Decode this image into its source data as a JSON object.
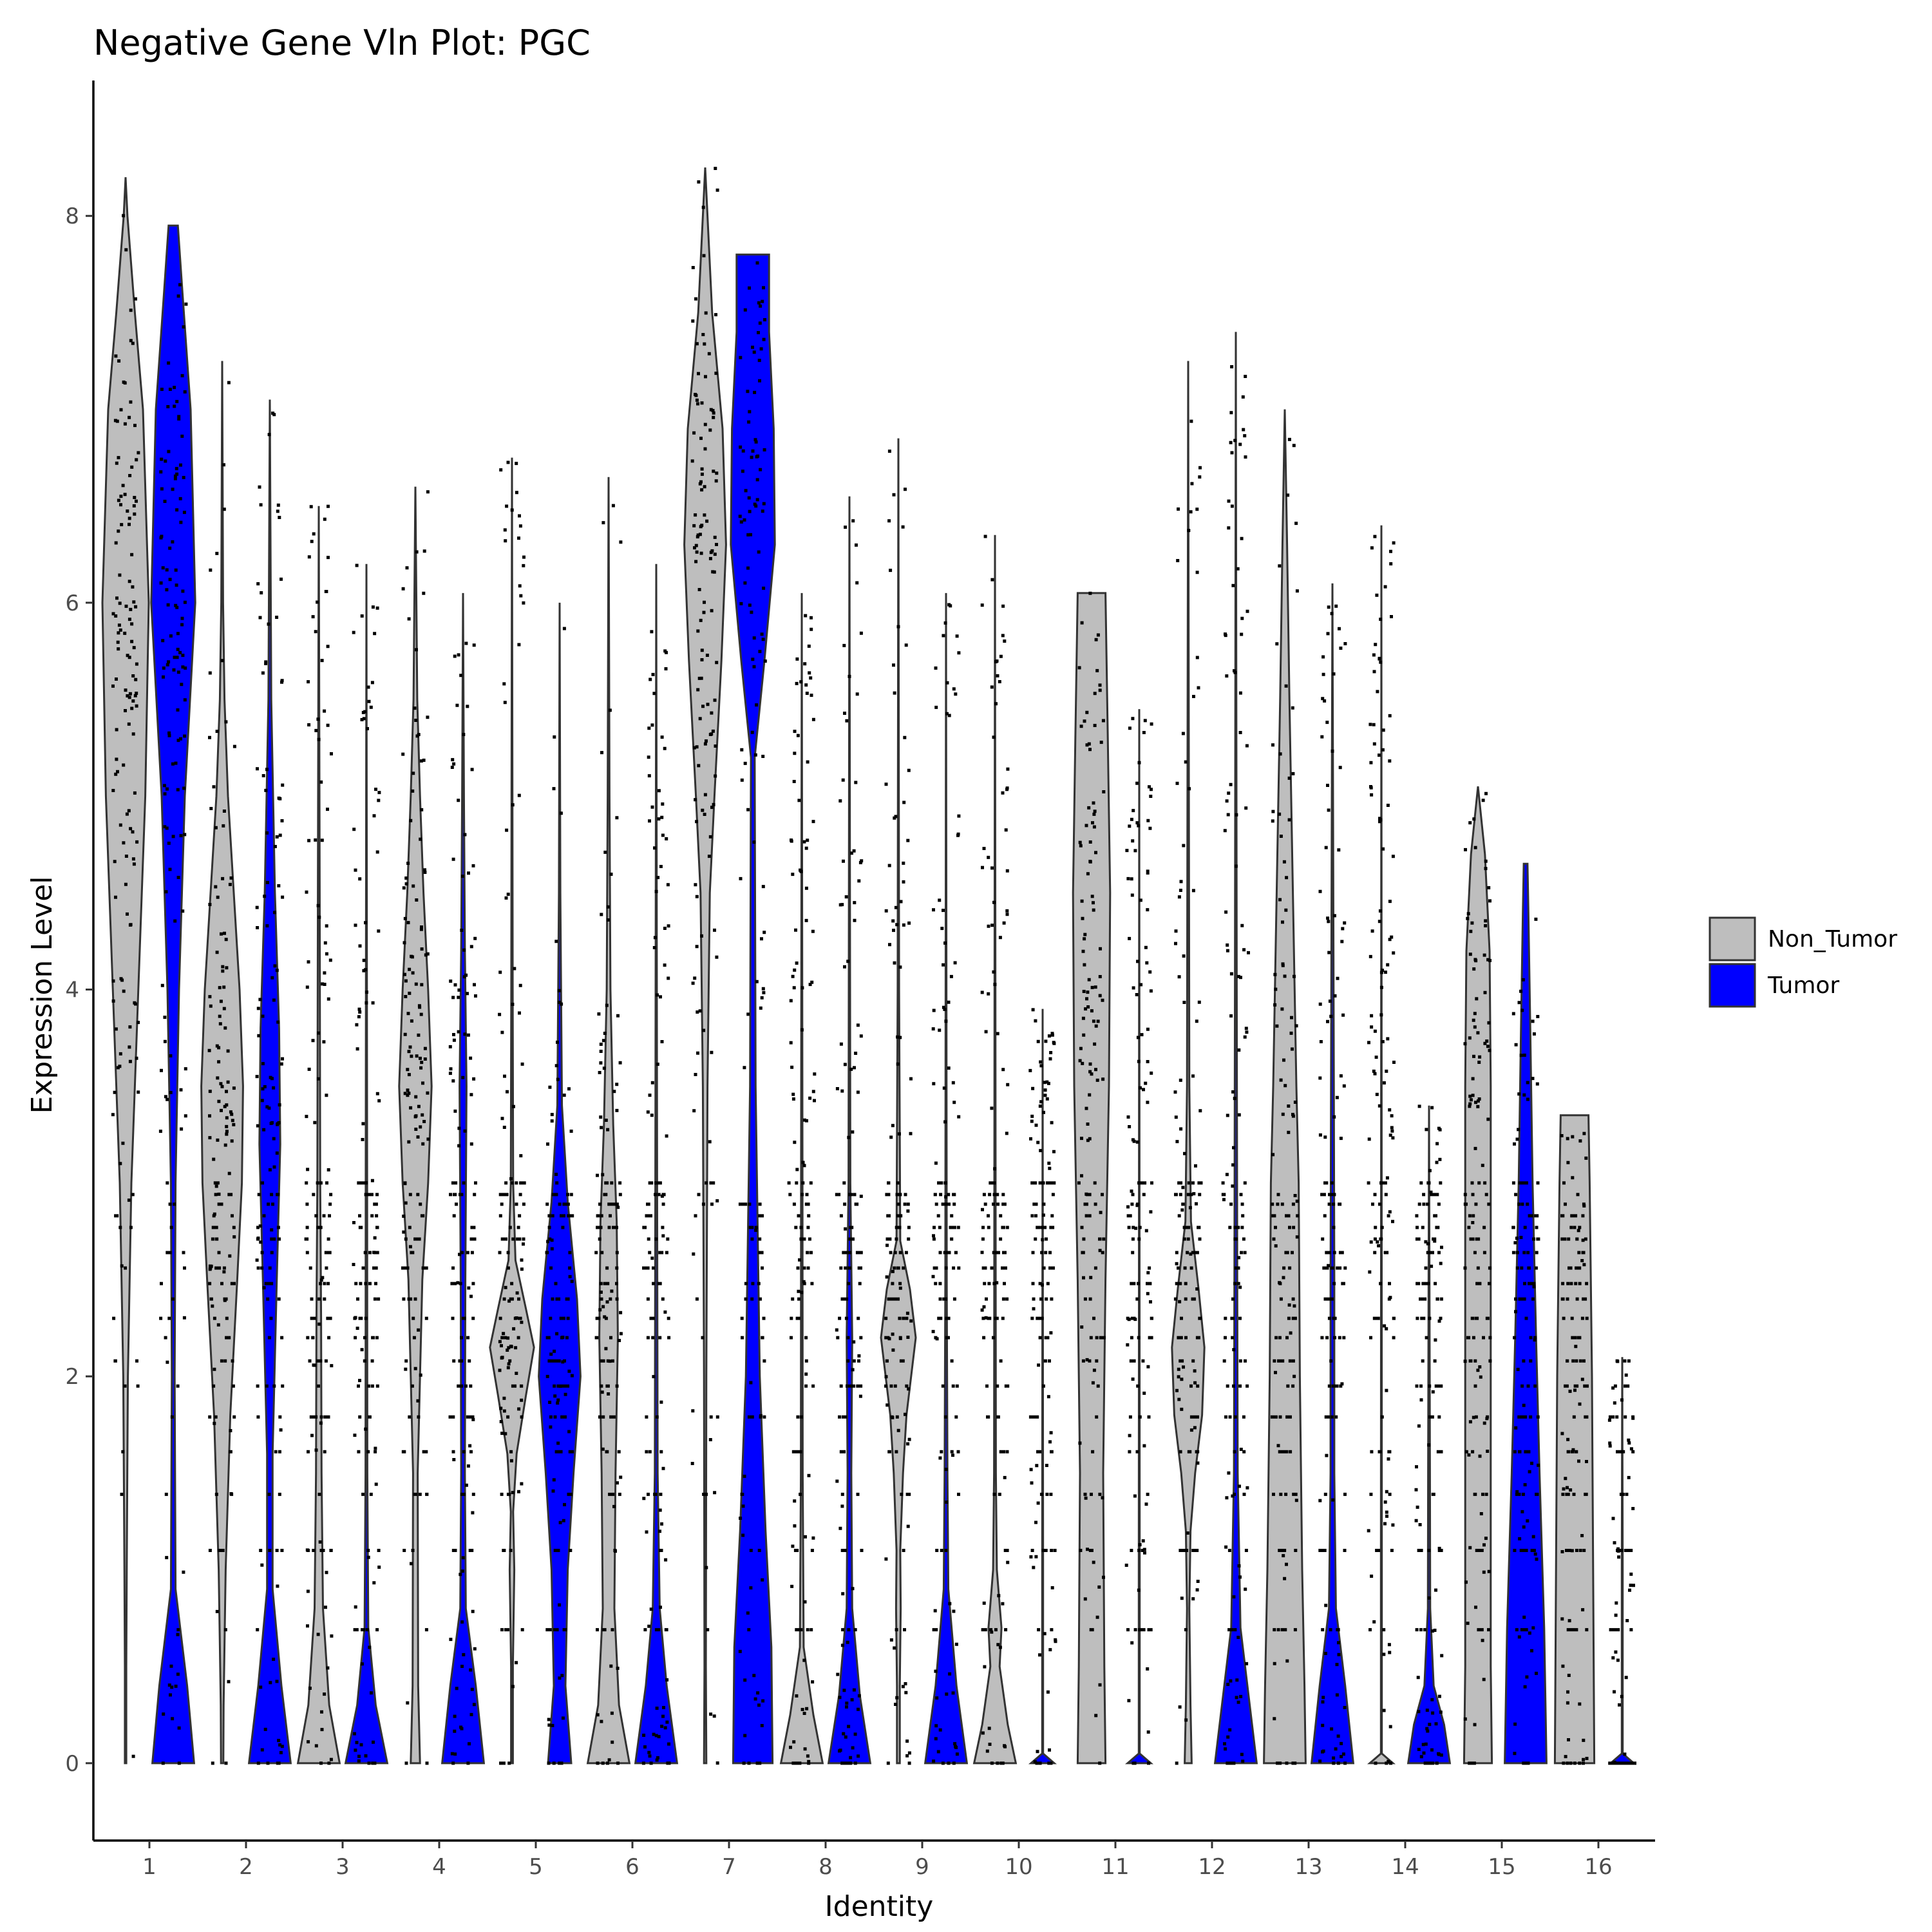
{
  "chart_data": {
    "type": "violin",
    "title": "Negative Gene Vln Plot: PGC",
    "xlabel": "Identity",
    "ylabel": "Expression Level",
    "ylim": [
      -0.4,
      8.7
    ],
    "yticks": [
      0,
      2,
      4,
      6,
      8
    ],
    "categories": [
      "1",
      "2",
      "3",
      "4",
      "5",
      "6",
      "7",
      "8",
      "9",
      "10",
      "11",
      "12",
      "13",
      "14",
      "15",
      "16"
    ],
    "grid": false,
    "legend": {
      "position": "right",
      "entries": [
        {
          "name": "Non_Tumor",
          "color": "#BEBEBE"
        },
        {
          "name": "Tumor",
          "color": "#0000FF"
        }
      ]
    },
    "series": [
      {
        "name": "Non_Tumor",
        "color": "#BEBEBE",
        "max_values": [
          8.2,
          7.25,
          6.5,
          6.6,
          6.75,
          6.65,
          8.25,
          6.05,
          6.85,
          6.35,
          6.05,
          7.25,
          7.0,
          6.4,
          5.05,
          3.35
        ],
        "shapes": [
          [
            [
              0,
              0.03
            ],
            [
              0.5,
              0.03
            ],
            [
              1,
              0.05
            ],
            [
              2,
              0.1
            ],
            [
              3,
              0.25
            ],
            [
              4,
              0.55
            ],
            [
              5,
              0.85
            ],
            [
              6,
              1.0
            ],
            [
              7,
              0.75
            ],
            [
              7.5,
              0.4
            ],
            [
              8,
              0.08
            ],
            [
              8.2,
              0
            ]
          ],
          [
            [
              0,
              0.05
            ],
            [
              0.3,
              0.06
            ],
            [
              1,
              0.15
            ],
            [
              1.8,
              0.35
            ],
            [
              2.5,
              0.65
            ],
            [
              3,
              0.85
            ],
            [
              3.5,
              0.9
            ],
            [
              4,
              0.75
            ],
            [
              4.5,
              0.5
            ],
            [
              5,
              0.25
            ],
            [
              5.5,
              0.1
            ],
            [
              6,
              0.04
            ],
            [
              7.25,
              0
            ]
          ],
          [
            [
              0,
              0.9
            ],
            [
              0.3,
              0.45
            ],
            [
              0.8,
              0.18
            ],
            [
              1.5,
              0.12
            ],
            [
              2.3,
              0.1
            ],
            [
              3,
              0.06
            ],
            [
              4.5,
              0.04
            ],
            [
              6.5,
              0
            ]
          ],
          [
            [
              0,
              0.2
            ],
            [
              0.4,
              0.12
            ],
            [
              1.5,
              0.1
            ],
            [
              2.5,
              0.3
            ],
            [
              3,
              0.55
            ],
            [
              3.5,
              0.7
            ],
            [
              4,
              0.55
            ],
            [
              4.5,
              0.35
            ],
            [
              5,
              0.2
            ],
            [
              5.5,
              0.08
            ],
            [
              6.6,
              0
            ]
          ],
          [
            [
              0,
              0.04
            ],
            [
              0.5,
              0.04
            ],
            [
              1,
              0.1
            ],
            [
              1.3,
              0.05
            ],
            [
              1.6,
              0.2
            ],
            [
              1.9,
              0.6
            ],
            [
              2.15,
              0.95
            ],
            [
              2.35,
              0.6
            ],
            [
              2.6,
              0.15
            ],
            [
              3,
              0.05
            ],
            [
              4,
              0.03
            ],
            [
              6.75,
              0
            ]
          ],
          [
            [
              0,
              0.9
            ],
            [
              0.3,
              0.45
            ],
            [
              0.8,
              0.25
            ],
            [
              1.5,
              0.3
            ],
            [
              2.2,
              0.4
            ],
            [
              2.8,
              0.35
            ],
            [
              3.3,
              0.2
            ],
            [
              4,
              0.08
            ],
            [
              5,
              0.04
            ],
            [
              6.65,
              0
            ]
          ],
          [
            [
              0,
              0.05
            ],
            [
              0.5,
              0.03
            ],
            [
              2,
              0.05
            ],
            [
              3.5,
              0.1
            ],
            [
              4.5,
              0.2
            ],
            [
              5,
              0.4
            ],
            [
              5.7,
              0.7
            ],
            [
              6.3,
              0.9
            ],
            [
              6.9,
              0.75
            ],
            [
              7.5,
              0.3
            ],
            [
              8.25,
              0
            ]
          ],
          [
            [
              0,
              0.9
            ],
            [
              0.25,
              0.5
            ],
            [
              0.6,
              0.08
            ],
            [
              1.5,
              0.04
            ],
            [
              3,
              0.03
            ],
            [
              6.05,
              0
            ]
          ],
          [
            [
              0,
              0.06
            ],
            [
              0.4,
              0.06
            ],
            [
              0.8,
              0.1
            ],
            [
              1.1,
              0.08
            ],
            [
              1.5,
              0.2
            ],
            [
              1.8,
              0.35
            ],
            [
              2.2,
              0.75
            ],
            [
              2.45,
              0.5
            ],
            [
              2.7,
              0.08
            ],
            [
              4,
              0.03
            ],
            [
              6.85,
              0
            ]
          ],
          [
            [
              0,
              0.9
            ],
            [
              0.2,
              0.55
            ],
            [
              0.5,
              0.2
            ],
            [
              0.7,
              0.28
            ],
            [
              1.0,
              0.08
            ],
            [
              1.5,
              0.04
            ],
            [
              6.35,
              0
            ]
          ],
          [
            [
              0,
              0.6
            ],
            [
              0.5,
              0.55
            ],
            [
              1.5,
              0.5
            ],
            [
              2.5,
              0.6
            ],
            [
              3.5,
              0.75
            ],
            [
              4.5,
              0.8
            ],
            [
              5.3,
              0.7
            ],
            [
              6.05,
              0.6
            ]
          ],
          [
            [
              0,
              0.15
            ],
            [
              0.3,
              0.1
            ],
            [
              0.8,
              0.05
            ],
            [
              1.2,
              0.1
            ],
            [
              1.5,
              0.3
            ],
            [
              1.8,
              0.6
            ],
            [
              2.15,
              0.7
            ],
            [
              2.45,
              0.45
            ],
            [
              2.8,
              0.12
            ],
            [
              3.5,
              0.05
            ],
            [
              5,
              0.03
            ],
            [
              7.25,
              0
            ]
          ],
          [
            [
              0,
              0.9
            ],
            [
              0.4,
              0.85
            ],
            [
              1,
              0.75
            ],
            [
              2,
              0.65
            ],
            [
              3,
              0.6
            ],
            [
              3.5,
              0.5
            ],
            [
              4.5,
              0.35
            ],
            [
              5.5,
              0.2
            ],
            [
              6.3,
              0.1
            ],
            [
              7.0,
              0
            ]
          ],
          [
            [
              0,
              0.5
            ],
            [
              0.05,
              0.02
            ],
            [
              1,
              0.02
            ],
            [
              6.4,
              0
            ]
          ],
          [
            [
              0,
              0.6
            ],
            [
              0.5,
              0.55
            ],
            [
              1.5,
              0.55
            ],
            [
              2.5,
              0.55
            ],
            [
              3.5,
              0.55
            ],
            [
              4.2,
              0.5
            ],
            [
              4.7,
              0.3
            ],
            [
              5.05,
              0
            ]
          ],
          [
            [
              0,
              0.85
            ],
            [
              1,
              0.8
            ],
            [
              2,
              0.75
            ],
            [
              3,
              0.65
            ],
            [
              3.35,
              0.6
            ]
          ]
        ]
      },
      {
        "name": "Tumor",
        "color": "#0000FF",
        "max_values": [
          7.95,
          7.05,
          6.2,
          6.05,
          6.0,
          6.2,
          7.8,
          6.55,
          6.05,
          3.9,
          5.45,
          7.4,
          6.1,
          3.4,
          4.65,
          2.1
        ],
        "shapes": [
          [
            [
              0,
              0.9
            ],
            [
              0.4,
              0.6
            ],
            [
              0.9,
              0.1
            ],
            [
              2,
              0.06
            ],
            [
              3,
              0.1
            ],
            [
              4,
              0.25
            ],
            [
              5,
              0.5
            ],
            [
              6,
              0.95
            ],
            [
              7,
              0.75
            ],
            [
              7.6,
              0.4
            ],
            [
              7.95,
              0.2
            ]
          ],
          [
            [
              0,
              0.9
            ],
            [
              0.4,
              0.5
            ],
            [
              0.9,
              0.12
            ],
            [
              1.6,
              0.12
            ],
            [
              2.5,
              0.3
            ],
            [
              3.2,
              0.45
            ],
            [
              3.8,
              0.4
            ],
            [
              4.5,
              0.22
            ],
            [
              5.5,
              0.06
            ],
            [
              7.05,
              0
            ]
          ],
          [
            [
              0,
              0.9
            ],
            [
              0.3,
              0.4
            ],
            [
              0.7,
              0.08
            ],
            [
              1.5,
              0.04
            ],
            [
              3,
              0.03
            ],
            [
              6.2,
              0
            ]
          ],
          [
            [
              0,
              0.9
            ],
            [
              0.4,
              0.55
            ],
            [
              0.8,
              0.12
            ],
            [
              1.5,
              0.08
            ],
            [
              2.5,
              0.1
            ],
            [
              3.5,
              0.15
            ],
            [
              4.2,
              0.08
            ],
            [
              5,
              0.04
            ],
            [
              6.05,
              0
            ]
          ],
          [
            [
              0,
              0.5
            ],
            [
              0.4,
              0.25
            ],
            [
              1,
              0.35
            ],
            [
              1.5,
              0.6
            ],
            [
              2,
              0.9
            ],
            [
              2.4,
              0.75
            ],
            [
              2.9,
              0.35
            ],
            [
              3.4,
              0.1
            ],
            [
              4.5,
              0.03
            ],
            [
              6.0,
              0
            ]
          ],
          [
            [
              0,
              0.9
            ],
            [
              0.4,
              0.45
            ],
            [
              0.8,
              0.15
            ],
            [
              1.5,
              0.06
            ],
            [
              3,
              0.04
            ],
            [
              6.2,
              0
            ]
          ],
          [
            [
              0,
              0.85
            ],
            [
              0.6,
              0.8
            ],
            [
              1.2,
              0.55
            ],
            [
              2,
              0.3
            ],
            [
              3.5,
              0.12
            ],
            [
              5.2,
              0.08
            ],
            [
              5.7,
              0.5
            ],
            [
              6.3,
              0.95
            ],
            [
              6.9,
              0.9
            ],
            [
              7.4,
              0.7
            ],
            [
              7.8,
              0.7
            ]
          ],
          [
            [
              0,
              0.9
            ],
            [
              0.35,
              0.45
            ],
            [
              0.8,
              0.12
            ],
            [
              1.5,
              0.08
            ],
            [
              2.2,
              0.12
            ],
            [
              3,
              0.04
            ],
            [
              6.55,
              0
            ]
          ],
          [
            [
              0,
              0.9
            ],
            [
              0.4,
              0.45
            ],
            [
              0.9,
              0.1
            ],
            [
              1.5,
              0.06
            ],
            [
              2.5,
              0.03
            ],
            [
              6.05,
              0
            ]
          ],
          [
            [
              0,
              0.5
            ],
            [
              0.05,
              0.02
            ],
            [
              1,
              0.02
            ],
            [
              3.9,
              0
            ]
          ],
          [
            [
              0,
              0.5
            ],
            [
              0.05,
              0.02
            ],
            [
              1,
              0.02
            ],
            [
              5.45,
              0
            ]
          ],
          [
            [
              0,
              0.9
            ],
            [
              0.3,
              0.6
            ],
            [
              0.7,
              0.2
            ],
            [
              1.5,
              0.08
            ],
            [
              2.5,
              0.06
            ],
            [
              4,
              0.04
            ],
            [
              7.4,
              0
            ]
          ],
          [
            [
              0,
              0.9
            ],
            [
              0.4,
              0.55
            ],
            [
              0.8,
              0.15
            ],
            [
              1.5,
              0.08
            ],
            [
              2.5,
              0.08
            ],
            [
              3.5,
              0.06
            ],
            [
              6.1,
              0
            ]
          ],
          [
            [
              0,
              0.9
            ],
            [
              0.2,
              0.65
            ],
            [
              0.4,
              0.2
            ],
            [
              0.8,
              0.05
            ],
            [
              1.5,
              0.04
            ],
            [
              3.4,
              0
            ]
          ],
          [
            [
              0,
              0.9
            ],
            [
              0.7,
              0.8
            ],
            [
              1.5,
              0.6
            ],
            [
              2.2,
              0.45
            ],
            [
              3,
              0.3
            ],
            [
              3.8,
              0.2
            ],
            [
              4.4,
              0.12
            ],
            [
              4.65,
              0.08
            ]
          ],
          [
            [
              0,
              0.5
            ],
            [
              0.05,
              0.02
            ],
            [
              1,
              0.02
            ],
            [
              2.1,
              0
            ]
          ]
        ]
      }
    ]
  }
}
